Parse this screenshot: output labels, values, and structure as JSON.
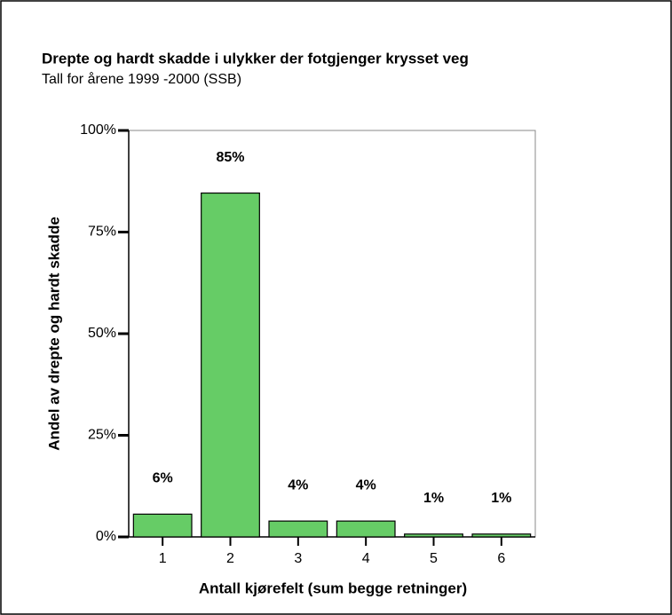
{
  "chart_data": {
    "type": "bar",
    "title": "Drepte og hardt skadde i ulykker der fotgjenger krysset veg",
    "subtitle": "Tall for årene 1999 -2000 (SSB)",
    "y_label": "Andel av drepte og hardt skadde",
    "x_label": "Antall kjørefelt (sum begge retninger)",
    "categories": [
      "1",
      "2",
      "3",
      "4",
      "5",
      "6"
    ],
    "values": [
      5.6,
      84.6,
      3.9,
      3.9,
      0.7,
      0.7
    ],
    "value_labels": [
      "6%",
      "85%",
      "4%",
      "4%",
      "1%",
      "1%"
    ],
    "color": "#66cc66",
    "ylim": [
      0,
      100
    ],
    "yticks": [
      {
        "value": 0,
        "label": "0%"
      },
      {
        "value": 25,
        "label": "25%"
      },
      {
        "value": 50,
        "label": "50%"
      },
      {
        "value": 75,
        "label": "75%"
      },
      {
        "value": 100,
        "label": "100%"
      }
    ],
    "grid": false
  }
}
